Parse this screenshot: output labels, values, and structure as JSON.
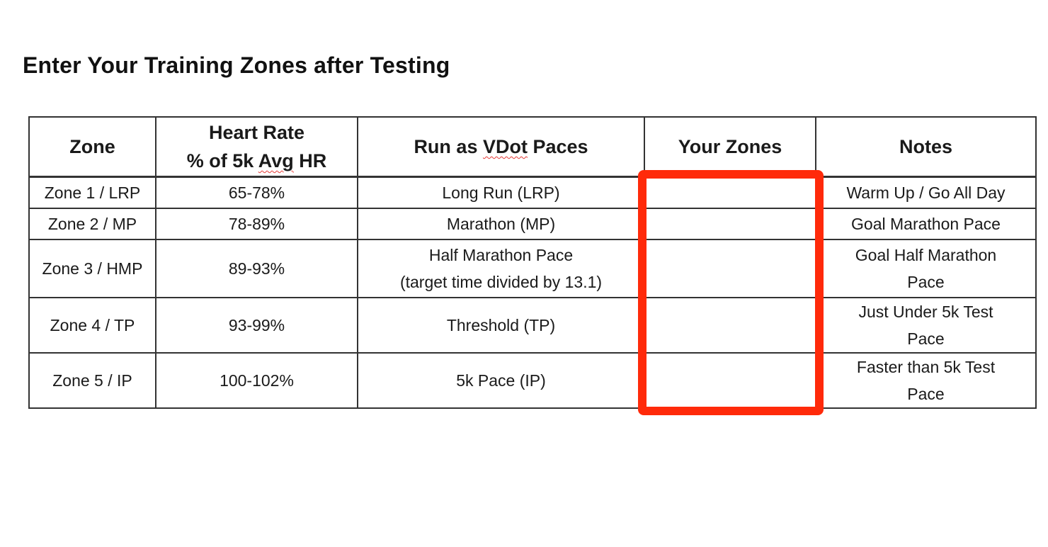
{
  "title": "Enter Your Training Zones after Testing",
  "highlight_color": "#ff2a0a",
  "table": {
    "headers": {
      "zone": "Zone",
      "heart_rate_line1": "Heart Rate",
      "heart_rate_line2_pre": "% of 5k ",
      "heart_rate_line2_mark": "Avg",
      "heart_rate_line2_post": " HR",
      "vdot_pre": "Run as ",
      "vdot_mark": "VDot",
      "vdot_post": " Paces",
      "your_zones": "Your Zones",
      "notes": "Notes"
    },
    "rows": [
      {
        "zone": "Zone 1 / LRP",
        "hr": "65-78%",
        "pace_line1": "Long Run (LRP)",
        "pace_line2": "",
        "your_zone": "",
        "notes_line1": "Warm Up / Go All Day",
        "notes_line2": ""
      },
      {
        "zone": "Zone 2 / MP",
        "hr": "78-89%",
        "pace_line1": "Marathon (MP)",
        "pace_line2": "",
        "your_zone": "",
        "notes_line1": "Goal Marathon Pace",
        "notes_line2": ""
      },
      {
        "zone": "Zone 3 / HMP",
        "hr": "89-93%",
        "pace_line1": "Half Marathon Pace",
        "pace_line2": "(target time divided by 13.1)",
        "your_zone": "",
        "notes_line1": "Goal Half Marathon",
        "notes_line2": "Pace"
      },
      {
        "zone": "Zone 4 / TP",
        "hr": "93-99%",
        "pace_line1": "Threshold (TP)",
        "pace_line2": "",
        "your_zone": "",
        "notes_line1": "Just Under 5k Test",
        "notes_line2": "Pace"
      },
      {
        "zone": "Zone 5 / IP",
        "hr": "100-102%",
        "pace_line1": "5k Pace (IP)",
        "pace_line2": "",
        "your_zone": "",
        "notes_line1": "Faster than 5k Test",
        "notes_line2": "Pace"
      }
    ]
  }
}
